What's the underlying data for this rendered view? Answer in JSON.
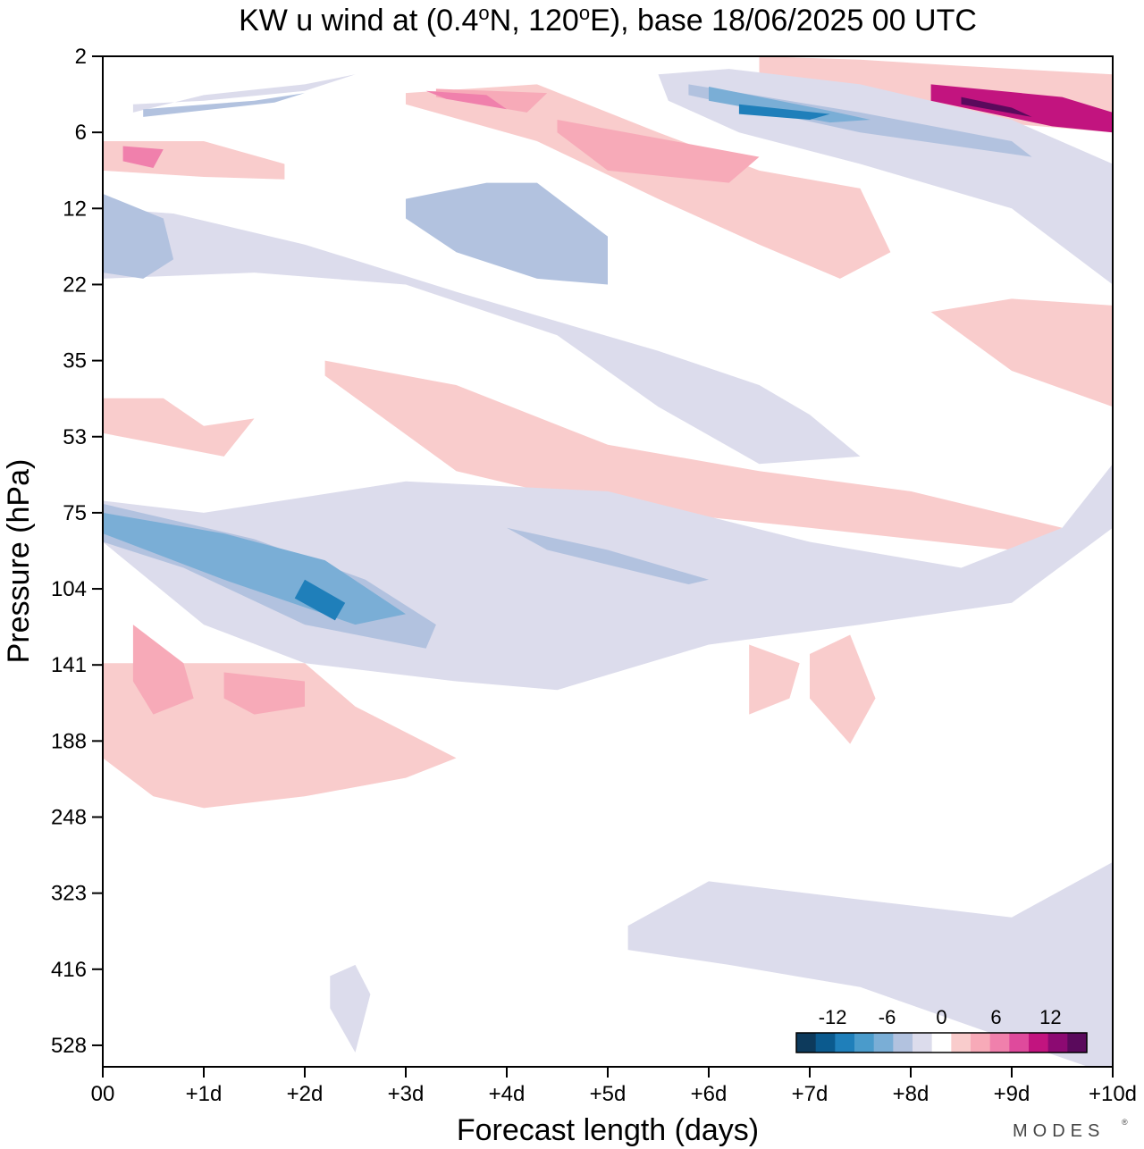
{
  "chart_data": {
    "type": "contour",
    "title": {
      "prefix": "KW u wind at (0.4",
      "deg1": "o",
      "mid": "N, 120",
      "deg2": "o",
      "suffix": "E),  base 18/06/2025  00 UTC"
    },
    "xlabel": "Forecast length (days)",
    "ylabel": "Pressure (hPa)",
    "x_ticks": [
      "00",
      "+1d",
      "+2d",
      "+3d",
      "+4d",
      "+5d",
      "+6d",
      "+7d",
      "+8d",
      "+9d",
      "+10d"
    ],
    "xlim": [
      0,
      10
    ],
    "y_ticks": [
      "2",
      "6",
      "12",
      "22",
      "35",
      "53",
      "75",
      "104",
      "141",
      "188",
      "248",
      "323",
      "416",
      "528"
    ],
    "y_scale": "approximately log-pressure, 2 hPa at top to ~600 hPa at bottom",
    "colorbar": {
      "tick_labels": [
        "-12",
        "-6",
        "0",
        "6",
        "12"
      ],
      "levels": [
        -16,
        -14,
        -12,
        -10,
        -8,
        -6,
        -4,
        -2,
        2,
        4,
        6,
        8,
        10,
        12,
        14,
        16
      ],
      "colors": [
        "#0d3a5c",
        "#0b5a8e",
        "#1f7fba",
        "#4a9bcb",
        "#7aaed6",
        "#b2c2df",
        "#dcdcec",
        "#ffffff",
        "#f9cccc",
        "#f7aab8",
        "#f080ac",
        "#df4a9c",
        "#c2147f",
        "#8c0a72",
        "#5a0a5c"
      ]
    },
    "contour_regions": [
      {
        "level": -4,
        "x": [
          0.0,
          0.7,
          2.0,
          3.5,
          5.5,
          6.5,
          7.0,
          7.5,
          6.5,
          5.5,
          4.5,
          3.0,
          1.5,
          0.0
        ],
        "y": [
          12,
          12.5,
          16,
          23,
          33,
          40,
          47,
          58,
          60,
          45,
          30,
          22,
          20,
          21
        ]
      },
      {
        "level": -4,
        "x": [
          0.3,
          1.0,
          2.0,
          2.5,
          2.0,
          1.0,
          0.3
        ],
        "y": [
          4.0,
          3.8,
          3.3,
          2.6,
          3.0,
          3.5,
          4.5
        ]
      },
      {
        "level": -4,
        "x": [
          5.5,
          6.2,
          7.5,
          9.0,
          10.0,
          10.0,
          9.0,
          7.5,
          6.3,
          5.6
        ],
        "y": [
          2.6,
          2.4,
          3.0,
          5.0,
          8.0,
          22,
          12,
          8,
          6,
          3.8
        ]
      },
      {
        "level": -4,
        "x": [
          0.0,
          1.0,
          3.0,
          5.0,
          7.0,
          8.5,
          9.5,
          10.0,
          10.0,
          9.0,
          7.5,
          6.0,
          4.5,
          3.5,
          2.0,
          1.0,
          0.0
        ],
        "y": [
          71,
          75,
          65,
          68,
          85,
          95,
          80,
          60,
          80,
          110,
          120,
          130,
          155,
          150,
          140,
          120,
          85
        ]
      },
      {
        "level": -4,
        "x": [
          5.2,
          6.0,
          7.5,
          9.0,
          10.0,
          10.0,
          9.0,
          7.5,
          6.2,
          5.2
        ],
        "y": [
          360,
          310,
          330,
          350,
          290,
          580,
          520,
          440,
          410,
          390
        ]
      },
      {
        "level": -4,
        "x": [
          2.25,
          2.5,
          2.65,
          2.5,
          2.25
        ],
        "y": [
          425,
          410,
          450,
          540,
          470
        ]
      },
      {
        "level": -6,
        "x": [
          0.0,
          0.6,
          0.7,
          0.4,
          0.0
        ],
        "y": [
          10.5,
          13,
          18,
          21,
          20
        ]
      },
      {
        "level": -6,
        "x": [
          3.0,
          3.8,
          4.3,
          5.0,
          5.0,
          4.3,
          3.5,
          3.0
        ],
        "y": [
          11,
          9.5,
          9.5,
          15,
          22,
          21,
          17,
          13
        ]
      },
      {
        "level": -6,
        "x": [
          0.4,
          1.5,
          2.0,
          1.7,
          0.4
        ],
        "y": [
          4.3,
          3.8,
          3.4,
          3.9,
          4.8
        ]
      },
      {
        "level": -6,
        "x": [
          5.8,
          7.5,
          9.0,
          9.2,
          7.5,
          5.8
        ],
        "y": [
          3.0,
          4.5,
          6.5,
          7.5,
          6.0,
          3.5
        ]
      },
      {
        "level": -6,
        "x": [
          0.0,
          1.5,
          2.6,
          3.3,
          3.2,
          2.0,
          0.8,
          0.0
        ],
        "y": [
          72,
          84,
          100,
          120,
          132,
          120,
          95,
          85
        ]
      },
      {
        "level": -6,
        "x": [
          4.0,
          5.0,
          6.0,
          5.8,
          4.4
        ],
        "y": [
          80,
          88,
          100,
          102,
          88
        ]
      },
      {
        "level": -8,
        "x": [
          0.0,
          1.2,
          2.2,
          3.0,
          2.5,
          1.2,
          0.0
        ],
        "y": [
          75,
          82,
          92,
          115,
          120,
          100,
          82
        ]
      },
      {
        "level": -8,
        "x": [
          6.0,
          7.2,
          7.6,
          7.2,
          6.0
        ],
        "y": [
          3.1,
          4.4,
          5.0,
          5.2,
          3.8
        ]
      },
      {
        "level": -12,
        "x": [
          2.0,
          2.4,
          2.3,
          1.9
        ],
        "y": [
          100,
          110,
          118,
          108
        ]
      },
      {
        "level": -12,
        "x": [
          6.3,
          7.2,
          7.0,
          6.3
        ],
        "y": [
          4.0,
          4.6,
          5.0,
          4.6
        ]
      },
      {
        "level": 2,
        "x": [
          0.0,
          2.0,
          2.5,
          3.5,
          3.0,
          2.0,
          1.0,
          0.5,
          0.0
        ],
        "y": [
          140,
          140,
          165,
          200,
          215,
          230,
          240,
          230,
          200
        ]
      },
      {
        "level": 2,
        "x": [
          2.2,
          3.5,
          5.0,
          6.5,
          8.0,
          9.5,
          9.0,
          7.0,
          5.0,
          3.5,
          2.2
        ],
        "y": [
          35,
          40,
          55,
          62,
          68,
          80,
          88,
          80,
          73,
          62,
          38
        ]
      },
      {
        "level": 2,
        "x": [
          3.0,
          4.3,
          5.5,
          6.5,
          7.5,
          7.8,
          7.3,
          6.5,
          5.5,
          4.3,
          3.0
        ],
        "y": [
          3.4,
          3.0,
          6.0,
          8.5,
          10,
          17,
          21,
          16,
          11,
          6.5,
          4.0
        ]
      },
      {
        "level": 2,
        "x": [
          0.0,
          1.0,
          1.8,
          1.8,
          1.0,
          0.0
        ],
        "y": [
          6.5,
          6.5,
          8.0,
          9.2,
          9.0,
          8.5
        ]
      },
      {
        "level": 2,
        "x": [
          6.5,
          7.5,
          8.5,
          10.0,
          10.0,
          8.5,
          7.5,
          6.5
        ],
        "y": [
          2.0,
          2.1,
          2.3,
          2.6,
          6.0,
          5.0,
          4.2,
          3.0
        ]
      },
      {
        "level": 2,
        "x": [
          8.2,
          9.0,
          10.0,
          10.0,
          9.0
        ],
        "y": [
          26,
          24,
          25,
          45,
          37
        ]
      },
      {
        "level": 2,
        "x": [
          0.0,
          0.6,
          1.0,
          1.5,
          1.2,
          0.6,
          0.0
        ],
        "y": [
          43,
          43,
          50,
          48,
          58,
          55,
          52
        ]
      },
      {
        "level": 2,
        "x": [
          7.0,
          7.4,
          7.65,
          7.4,
          7.0
        ],
        "y": [
          135,
          125,
          160,
          190,
          160
        ]
      },
      {
        "level": 2,
        "x": [
          6.4,
          6.9,
          6.8,
          6.4
        ],
        "y": [
          130,
          140,
          160,
          170
        ]
      },
      {
        "level": 4,
        "x": [
          0.3,
          0.8,
          0.9,
          0.5,
          0.3
        ],
        "y": [
          120,
          140,
          160,
          170,
          150
        ]
      },
      {
        "level": 4,
        "x": [
          1.2,
          2.0,
          2.0,
          1.5,
          1.2
        ],
        "y": [
          145,
          150,
          165,
          170,
          160
        ]
      },
      {
        "level": 4,
        "x": [
          3.3,
          4.4,
          4.2,
          3.3
        ],
        "y": [
          3.2,
          3.4,
          4.5,
          3.6
        ]
      },
      {
        "level": 4,
        "x": [
          4.5,
          6.5,
          6.2,
          5.0,
          4.5
        ],
        "y": [
          5.0,
          7.5,
          9.5,
          8.5,
          6.0
        ]
      },
      {
        "level": 6,
        "x": [
          0.2,
          0.6,
          0.5,
          0.2
        ],
        "y": [
          6.8,
          7.0,
          8.3,
          7.8
        ]
      },
      {
        "level": 6,
        "x": [
          3.2,
          3.8,
          4.0,
          3.4
        ],
        "y": [
          3.3,
          3.5,
          4.3,
          3.7
        ]
      },
      {
        "level": 10,
        "x": [
          8.2,
          9.5,
          10.0,
          10.0,
          9.4,
          8.2
        ],
        "y": [
          3.0,
          3.6,
          4.5,
          6.0,
          5.5,
          3.8
        ]
      },
      {
        "level": 14,
        "x": [
          8.5,
          9.0,
          9.2,
          8.5
        ],
        "y": [
          3.6,
          4.2,
          4.8,
          4.0
        ]
      }
    ]
  },
  "watermark": "MODES"
}
